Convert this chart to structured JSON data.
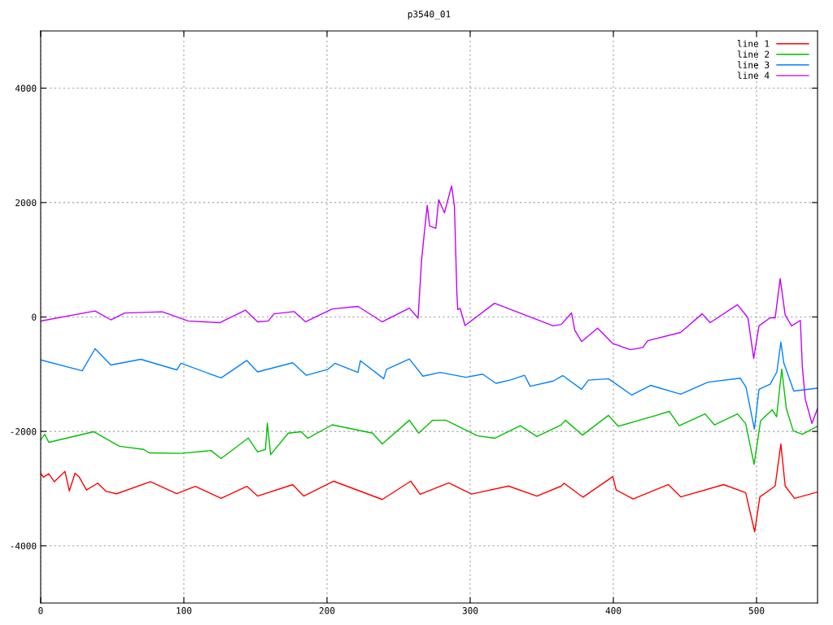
{
  "chart_data": {
    "type": "line",
    "title": "p3540_01",
    "xlim": [
      0,
      542.6
    ],
    "ylim": [
      -5000,
      5000
    ],
    "xticks": [
      0,
      100,
      200,
      300,
      400,
      500
    ],
    "yticks": [
      -4000,
      -2000,
      0,
      2000,
      4000
    ],
    "grid": true,
    "legend": "top right",
    "series": [
      {
        "name": "line 1",
        "color": "#ff0000",
        "x": [
          0,
          1.9,
          5.7,
          9.5,
          17,
          20,
          24,
          27,
          32,
          39.8,
          45.5,
          53,
          76.7,
          95,
          108,
          126,
          144,
          151.5,
          176,
          183.7,
          204.5,
          238.6,
          258.5,
          265,
          285,
          301,
          326.7,
          346.6,
          363.6,
          365.5,
          378.8,
          399.6,
          402,
          413.8,
          438.4,
          447,
          477,
          492.4,
          498.7,
          502.3,
          513,
          517,
          520,
          526.5,
          542.6
        ],
        "values": [
          -2730,
          -2800,
          -2740,
          -2880,
          -2700,
          -3040,
          -2730,
          -2800,
          -3025,
          -2905,
          -3045,
          -3090,
          -2880,
          -3090,
          -2960,
          -3170,
          -2960,
          -3130,
          -2930,
          -3130,
          -2870,
          -3190,
          -2870,
          -3100,
          -2900,
          -3095,
          -2955,
          -3130,
          -2955,
          -2905,
          -3150,
          -2790,
          -3025,
          -3180,
          -2930,
          -3145,
          -2930,
          -3070,
          -3755,
          -3145,
          -2955,
          -2220,
          -2955,
          -3170,
          -3060
        ]
      },
      {
        "name": "line 2",
        "color": "#00c000",
        "x": [
          0,
          2.8,
          5.7,
          37,
          55,
          72,
          75.8,
          98,
          119,
          126,
          145,
          151.5,
          157,
          158.3,
          160.6,
          173,
          182,
          186.5,
          203.6,
          231.8,
          238.6,
          257.5,
          264,
          273.7,
          283,
          304.9,
          317,
          335,
          346.6,
          363.6,
          366.5,
          378.4,
          396.6,
          403.4,
          430,
          439,
          446,
          464,
          470.6,
          486.7,
          492.4,
          498.3,
          502.8,
          511,
          514,
          517.6,
          520.8,
          525.6,
          532,
          542.6
        ],
        "values": [
          -2150,
          -2050,
          -2190,
          -2005,
          -2260,
          -2315,
          -2375,
          -2385,
          -2335,
          -2475,
          -2115,
          -2360,
          -2315,
          -1855,
          -2405,
          -2030,
          -2005,
          -2120,
          -1885,
          -2030,
          -2220,
          -1805,
          -2030,
          -1805,
          -1805,
          -2075,
          -2120,
          -1900,
          -2090,
          -1885,
          -1805,
          -2065,
          -1720,
          -1910,
          -1720,
          -1650,
          -1900,
          -1695,
          -1885,
          -1695,
          -1865,
          -2575,
          -1815,
          -1620,
          -1745,
          -910,
          -1600,
          -1990,
          -2050,
          -1910
        ]
      },
      {
        "name": "line 3",
        "color": "#0080ff",
        "x": [
          0,
          29,
          38,
          49,
          70,
          95,
          98,
          126,
          144,
          151.5,
          176,
          185.6,
          200.6,
          205.5,
          221.6,
          223.3,
          239.6,
          241.5,
          257.5,
          267,
          279,
          297,
          308.7,
          318,
          327.7,
          338,
          341.9,
          358,
          364.6,
          377.8,
          382.5,
          396.6,
          412.9,
          426,
          447,
          466,
          488.6,
          492.6,
          498.5,
          501.7,
          509.5,
          514.2,
          517,
          519,
          526,
          542.6
        ],
        "values": [
          -750,
          -940,
          -555,
          -840,
          -740,
          -925,
          -810,
          -1065,
          -760,
          -960,
          -800,
          -1020,
          -915,
          -810,
          -970,
          -765,
          -1080,
          -915,
          -735,
          -1035,
          -970,
          -1055,
          -1000,
          -1160,
          -1105,
          -1020,
          -1210,
          -1120,
          -1025,
          -1265,
          -1105,
          -1080,
          -1365,
          -1195,
          -1350,
          -1140,
          -1070,
          -1225,
          -1960,
          -1265,
          -1175,
          -960,
          -440,
          -800,
          -1295,
          -1245
        ]
      },
      {
        "name": "line 4",
        "color": "#c000ff",
        "x": [
          0,
          38,
          49,
          58.6,
          85,
          103,
          125,
          143,
          151.5,
          159,
          163,
          177,
          185,
          203.6,
          221.6,
          238.6,
          257.5,
          263.6,
          266,
          268,
          270,
          271.7,
          276,
          278,
          282,
          287,
          289,
          290.7,
          291.3,
          293,
          296.4,
          317,
          358,
          363.6,
          370.8,
          373,
          377.8,
          389,
          399.6,
          411.9,
          420.5,
          424,
          447,
          462,
          467.6,
          486.7,
          494,
          498,
          501.7,
          509.5,
          513,
          516.5,
          520,
          524.5,
          530.6,
          532,
          534,
          538.7,
          542.6
        ],
        "values": [
          -70,
          105,
          -50,
          70,
          90,
          -70,
          -100,
          120,
          -85,
          -70,
          55,
          95,
          -85,
          140,
          185,
          -85,
          155,
          -20,
          980,
          1480,
          1950,
          1590,
          1550,
          2050,
          1820,
          2290,
          1930,
          410,
          130,
          150,
          -150,
          240,
          -155,
          -130,
          70,
          -230,
          -430,
          -195,
          -465,
          -570,
          -535,
          -415,
          -270,
          55,
          -100,
          215,
          -15,
          -725,
          -155,
          -15,
          -15,
          670,
          35,
          -155,
          -60,
          -870,
          -1435,
          -1860,
          -1600
        ]
      }
    ]
  }
}
